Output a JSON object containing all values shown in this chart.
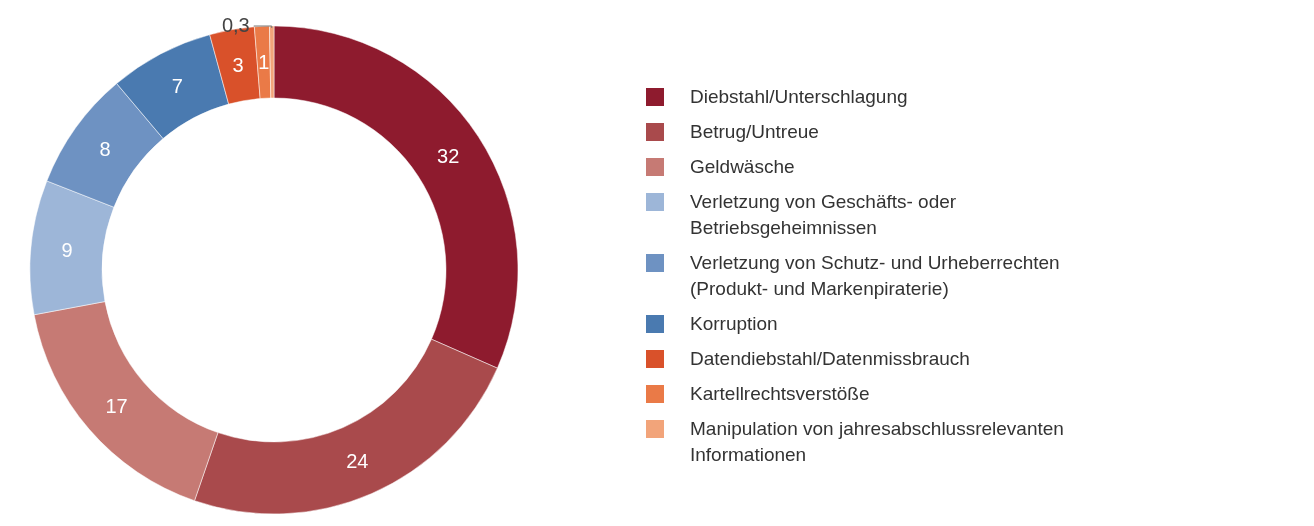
{
  "chart_data": {
    "type": "donut",
    "categories": [
      "Diebstahl/Unterschlagung",
      "Betrug/Untreue",
      "Geldwäsche",
      "Verletzung von Geschäfts- oder Betriebsgeheimnissen",
      "Verletzung von Schutz- und Urheberrechten (Produkt- und Markenpiraterie)",
      "Korruption",
      "Datendiebstahl/Datenmissbrauch",
      "Kartellrechtsverstöße",
      "Manipulation von jahresabschlussrelevanten Informationen"
    ],
    "values": [
      32,
      24,
      17,
      9,
      8,
      7,
      3,
      1,
      0.3
    ],
    "value_labels": [
      "32",
      "24",
      "17",
      "9",
      "8",
      "7",
      "3",
      "1",
      "0,3"
    ],
    "colors": [
      "#8e1b2e",
      "#a94a4c",
      "#c67a74",
      "#9db6d8",
      "#6e92c2",
      "#4a7ab0",
      "#d9512a",
      "#ea7a47",
      "#f2a47a"
    ],
    "legend": "right"
  }
}
